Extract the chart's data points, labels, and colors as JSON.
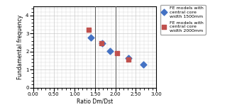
{
  "title": "",
  "xlabel": "Ratio Dm/Dst",
  "ylabel": "Fundamental frequency",
  "xlim": [
    0.0,
    3.0
  ],
  "ylim": [
    0,
    4.5
  ],
  "xticks": [
    0.0,
    0.5,
    1.0,
    1.5,
    2.0,
    2.5,
    3.0
  ],
  "yticks": [
    0,
    1,
    2,
    3,
    4
  ],
  "blue_x": [
    1.4,
    1.68,
    1.87,
    2.32,
    2.68
  ],
  "blue_y": [
    2.78,
    2.45,
    2.02,
    1.65,
    1.28
  ],
  "red_x": [
    1.35,
    1.67,
    2.05,
    2.32
  ],
  "red_y": [
    3.2,
    2.47,
    1.93,
    1.58
  ],
  "blue_color": "#4472C4",
  "red_color": "#C0504D",
  "legend_blue": "FE models with\ncentral core\nwidth 1500mm",
  "legend_red": "FE models with\ncentral core\nwidth 2000mm",
  "vlines": [
    1.5,
    2.0
  ],
  "grid_color": "#C0C0C0",
  "bg_color": "#FFFFFF",
  "marker_size": 20
}
